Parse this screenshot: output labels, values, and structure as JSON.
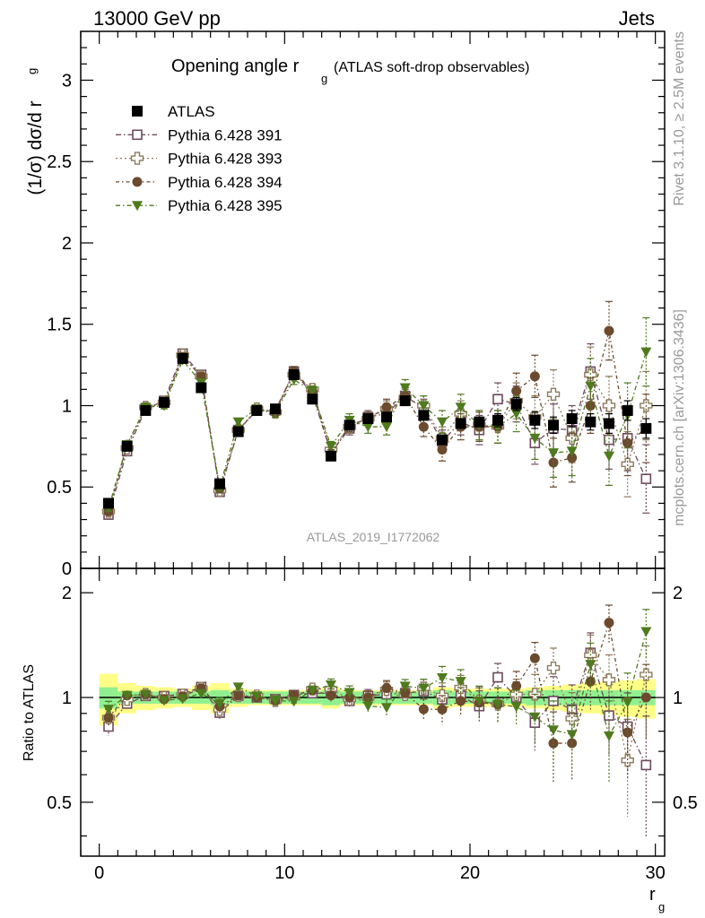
{
  "header": {
    "energy": "13000 GeV pp",
    "category": "Jets"
  },
  "side_labels": {
    "rivet": "Rivet 3.1.10, ≥ 2.5M events",
    "mcplots": "mcplots.cern.ch [arXiv:1306.3436]"
  },
  "analysis_id": "ATLAS_2019_I1772062",
  "chart_data": [
    {
      "type": "scatter",
      "title": "Opening angle r_g (ATLAS soft-drop observables)",
      "title_main": "Opening angle r",
      "title_sub": "g",
      "title_tail": "(ATLAS soft-drop observables)",
      "ylabel": "(1/σ) dσ/d r",
      "ylabel_sub": "g",
      "xlim": [
        -1,
        30.5
      ],
      "ylim": [
        0,
        3.3
      ],
      "yticks": [
        "0",
        "0.5",
        "1",
        "1.5",
        "2",
        "2.5",
        "3"
      ],
      "ytick_values": [
        0,
        0.5,
        1,
        1.5,
        2,
        2.5,
        3
      ],
      "legend_position": "top-left",
      "x": [
        0.5,
        1.5,
        2.5,
        3.5,
        4.5,
        5.5,
        6.5,
        7.5,
        8.5,
        9.5,
        10.5,
        11.5,
        12.5,
        13.5,
        14.5,
        15.5,
        16.5,
        17.5,
        18.5,
        19.5,
        20.5,
        21.5,
        22.5,
        23.5,
        24.5,
        25.5,
        26.5,
        27.5,
        28.5,
        29.5
      ],
      "series": [
        {
          "name": "ATLAS",
          "color": "#000000",
          "marker": "filled-square",
          "values": [
            0.4,
            0.75,
            0.97,
            1.02,
            1.29,
            1.11,
            0.52,
            0.84,
            0.97,
            0.98,
            1.19,
            1.04,
            0.69,
            0.88,
            0.92,
            0.93,
            1.03,
            0.94,
            0.79,
            0.89,
            0.9,
            0.91,
            1.01,
            0.91,
            0.88,
            0.92,
            0.9,
            0.89,
            0.97,
            0.86
          ],
          "err": [
            0.01,
            0.01,
            0.01,
            0.01,
            0.01,
            0.01,
            0.01,
            0.01,
            0.01,
            0.01,
            0.01,
            0.01,
            0.01,
            0.01,
            0.02,
            0.02,
            0.02,
            0.02,
            0.02,
            0.03,
            0.03,
            0.04,
            0.04,
            0.05,
            0.05,
            0.05,
            0.05,
            0.06,
            0.06,
            0.06
          ]
        },
        {
          "name": "Pythia 6.428 391",
          "color": "#6e4a5f",
          "marker": "open-square",
          "values": [
            0.33,
            0.72,
            0.98,
            1.03,
            1.32,
            1.19,
            0.47,
            0.85,
            0.97,
            0.97,
            1.21,
            1.07,
            0.71,
            0.86,
            0.93,
            0.95,
            1.06,
            0.98,
            0.78,
            0.9,
            0.85,
            1.04,
            1.01,
            0.77,
            0.86,
            0.85,
            1.21,
            0.79,
            0.8,
            0.55
          ],
          "err": [
            0.02,
            0.02,
            0.02,
            0.02,
            0.02,
            0.02,
            0.02,
            0.02,
            0.02,
            0.03,
            0.03,
            0.03,
            0.03,
            0.04,
            0.04,
            0.05,
            0.05,
            0.06,
            0.07,
            0.08,
            0.09,
            0.1,
            0.11,
            0.13,
            0.15,
            0.15,
            0.17,
            0.18,
            0.2,
            0.21
          ]
        },
        {
          "name": "Pythia 6.428 393",
          "color": "#8c7a5a",
          "marker": "open-cross",
          "values": [
            0.35,
            0.74,
            0.99,
            1.02,
            1.31,
            1.18,
            0.48,
            0.85,
            0.98,
            0.96,
            1.19,
            1.1,
            0.73,
            0.87,
            0.92,
            0.98,
            1.05,
            1.0,
            0.8,
            0.95,
            0.88,
            0.87,
            1.03,
            0.93,
            1.07,
            0.8,
            1.19,
            1.0,
            0.64,
            1.0
          ],
          "err": [
            0.02,
            0.02,
            0.02,
            0.02,
            0.02,
            0.02,
            0.02,
            0.02,
            0.02,
            0.03,
            0.03,
            0.03,
            0.03,
            0.04,
            0.04,
            0.05,
            0.05,
            0.06,
            0.07,
            0.08,
            0.09,
            0.1,
            0.11,
            0.13,
            0.15,
            0.15,
            0.17,
            0.18,
            0.2,
            0.21
          ]
        },
        {
          "name": "Pythia 6.428 394",
          "color": "#6b4a2e",
          "marker": "filled-circle",
          "values": [
            0.35,
            0.76,
            0.99,
            1.01,
            1.3,
            1.18,
            0.49,
            0.85,
            0.97,
            0.96,
            1.21,
            1.09,
            0.7,
            0.88,
            0.92,
            0.99,
            1.06,
            0.87,
            0.73,
            0.87,
            0.87,
            0.87,
            1.09,
            1.18,
            0.65,
            0.68,
            1.0,
            1.46,
            0.77,
            0.86
          ],
          "err": [
            0.02,
            0.02,
            0.02,
            0.02,
            0.02,
            0.02,
            0.02,
            0.02,
            0.02,
            0.03,
            0.03,
            0.03,
            0.03,
            0.04,
            0.04,
            0.05,
            0.05,
            0.06,
            0.07,
            0.08,
            0.09,
            0.1,
            0.11,
            0.13,
            0.15,
            0.15,
            0.17,
            0.18,
            0.2,
            0.21
          ]
        },
        {
          "name": "Pythia 6.428 395",
          "color": "#4f7a1e",
          "marker": "filled-triangle-down",
          "values": [
            0.37,
            0.76,
            0.99,
            1.0,
            1.28,
            1.14,
            0.5,
            0.9,
            0.98,
            0.96,
            1.16,
            1.09,
            0.75,
            0.91,
            0.87,
            0.87,
            1.11,
            1.0,
            0.9,
            0.99,
            0.88,
            0.87,
            0.95,
            0.8,
            0.71,
            0.72,
            1.12,
            0.69,
            0.94,
            1.33
          ],
          "err": [
            0.02,
            0.02,
            0.02,
            0.02,
            0.02,
            0.02,
            0.02,
            0.02,
            0.02,
            0.03,
            0.03,
            0.03,
            0.03,
            0.04,
            0.04,
            0.05,
            0.05,
            0.06,
            0.07,
            0.08,
            0.09,
            0.1,
            0.11,
            0.13,
            0.15,
            0.15,
            0.17,
            0.18,
            0.2,
            0.21
          ]
        }
      ]
    },
    {
      "type": "scatter",
      "title": "",
      "ylabel": "Ratio to ATLAS",
      "xlabel": "r",
      "xlabel_sub": "g",
      "xlim": [
        -1,
        30.5
      ],
      "ylim": [
        0.35,
        2.35
      ],
      "xticks": [
        "0",
        "10",
        "20",
        "30"
      ],
      "xtick_values": [
        0,
        10,
        20,
        30
      ],
      "yticks": [
        "0.5",
        "1",
        "2"
      ],
      "ytick_values": [
        0.5,
        1,
        2
      ],
      "band_inner": [
        0.07,
        0.04,
        0.04,
        0.04,
        0.04,
        0.04,
        0.05,
        0.04,
        0.04,
        0.04,
        0.04,
        0.04,
        0.05,
        0.04,
        0.04,
        0.04,
        0.04,
        0.04,
        0.05,
        0.04,
        0.04,
        0.04,
        0.04,
        0.05,
        0.05,
        0.05,
        0.05,
        0.05,
        0.05,
        0.05
      ],
      "band_outer": [
        0.17,
        0.1,
        0.08,
        0.07,
        0.06,
        0.08,
        0.1,
        0.06,
        0.05,
        0.05,
        0.05,
        0.05,
        0.07,
        0.05,
        0.05,
        0.05,
        0.05,
        0.05,
        0.07,
        0.06,
        0.06,
        0.06,
        0.06,
        0.07,
        0.08,
        0.09,
        0.1,
        0.11,
        0.12,
        0.13
      ]
    }
  ]
}
